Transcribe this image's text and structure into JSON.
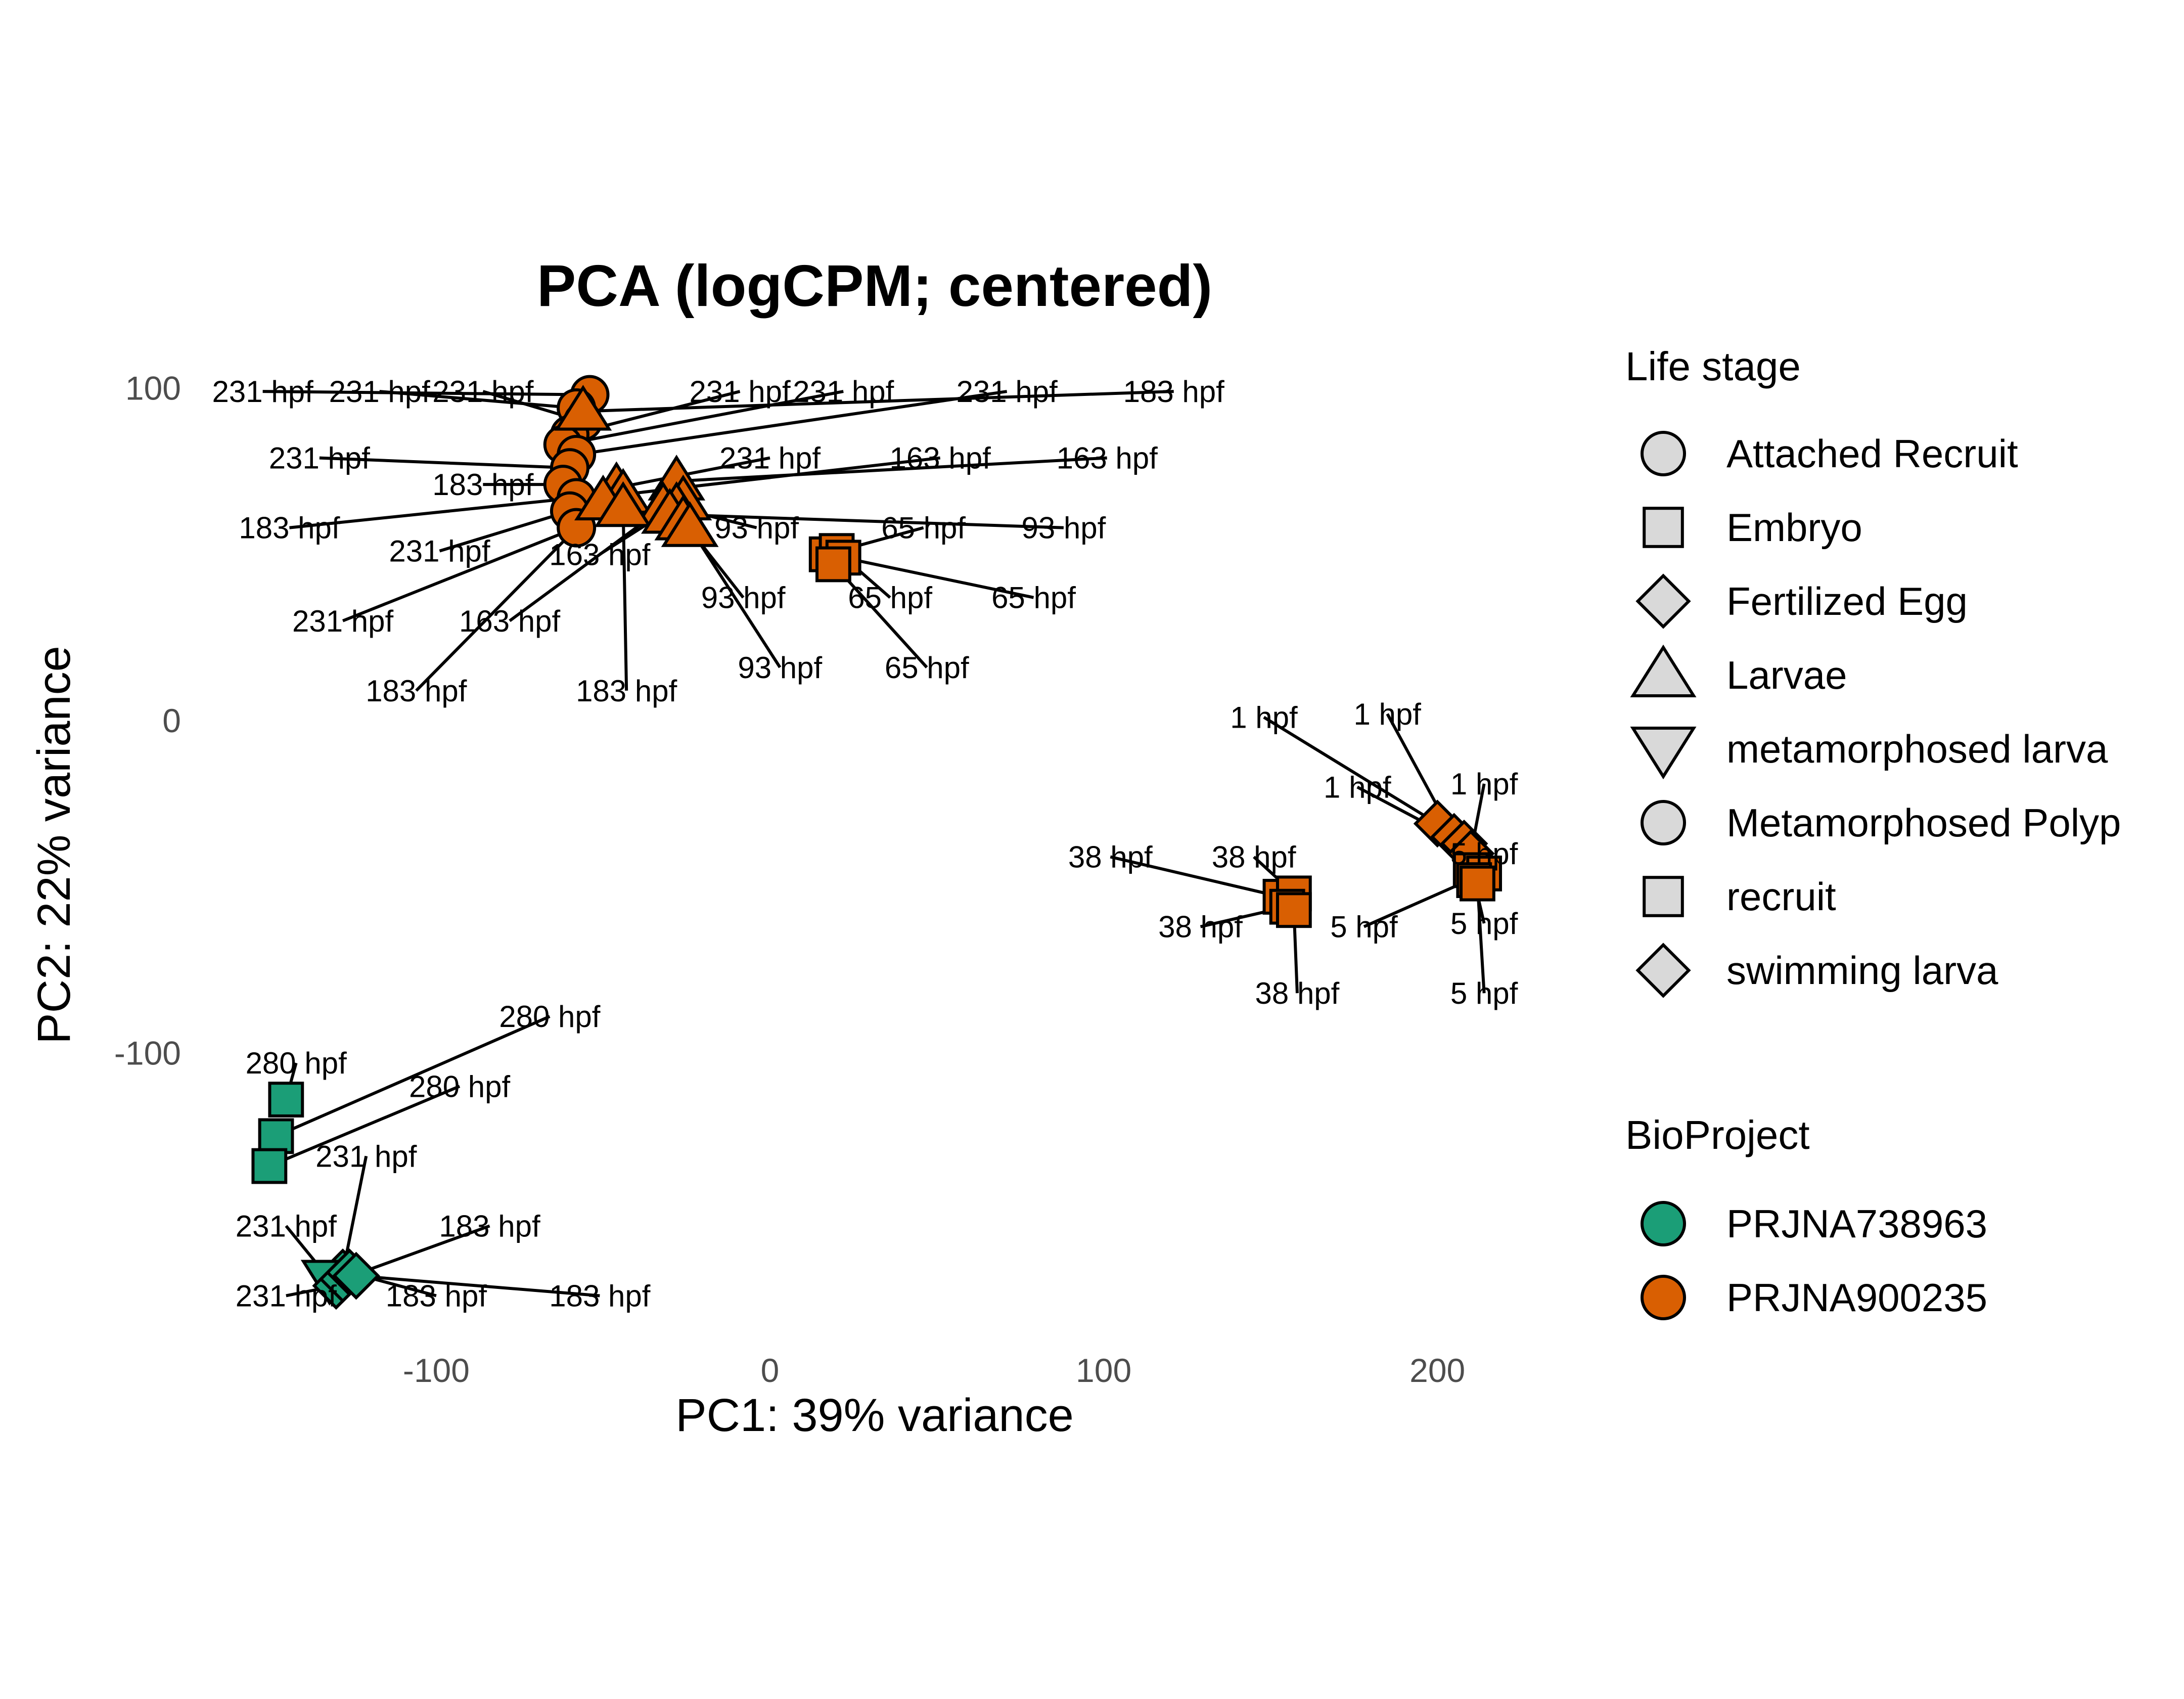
{
  "chart_data": {
    "type": "scatter",
    "title": "PCA (logCPM; centered)",
    "xlabel": "PC1: 39% variance",
    "ylabel": "PC2: 22% variance",
    "xlim": [
      -170,
      225
    ],
    "ylim": [
      -180,
      110
    ],
    "xticks": [
      -100,
      0,
      100,
      200
    ],
    "yticks": [
      -100,
      0,
      100
    ],
    "grid": false,
    "legend_placement": "right",
    "shape_legend": {
      "title": "Life stage",
      "items": [
        {
          "label": "Attached Recruit",
          "shape": "circle"
        },
        {
          "label": "Embryo",
          "shape": "square"
        },
        {
          "label": "Fertilized Egg",
          "shape": "diamond"
        },
        {
          "label": "Larvae",
          "shape": "triangle-up"
        },
        {
          "label": "metamorphosed larva",
          "shape": "triangle-down"
        },
        {
          "label": "Metamorphosed Polyp",
          "shape": "circle"
        },
        {
          "label": "recruit",
          "shape": "square"
        },
        {
          "label": "swimming larva",
          "shape": "diamond"
        }
      ]
    },
    "color_legend": {
      "title": "BioProject",
      "items": [
        {
          "label": "PRJNA738963",
          "color": "#1b9e77"
        },
        {
          "label": "PRJNA900235",
          "color": "#d95f02"
        }
      ]
    },
    "points": [
      {
        "x": -54,
        "y": 98,
        "shape": "circle",
        "project": "PRJNA900235",
        "label": "231 hpf",
        "lx": -152,
        "ly": 99
      },
      {
        "x": -58,
        "y": 94,
        "shape": "circle",
        "project": "PRJNA900235",
        "label": "231 hpf",
        "lx": -117,
        "ly": 99
      },
      {
        "x": -56,
        "y": 90,
        "shape": "circle",
        "project": "PRJNA900235",
        "label": "231 hpf",
        "lx": -86,
        "ly": 99
      },
      {
        "x": -60,
        "y": 86,
        "shape": "circle",
        "project": "PRJNA900235",
        "label": "231 hpf",
        "lx": -9,
        "ly": 99
      },
      {
        "x": -62,
        "y": 83,
        "shape": "circle",
        "project": "PRJNA900235",
        "label": "231 hpf",
        "lx": 22,
        "ly": 99
      },
      {
        "x": -58,
        "y": 80,
        "shape": "circle",
        "project": "PRJNA900235",
        "label": "231 hpf",
        "lx": 71,
        "ly": 99
      },
      {
        "x": -60,
        "y": 76,
        "shape": "circle",
        "project": "PRJNA900235",
        "label": "231 hpf",
        "lx": -135,
        "ly": 79
      },
      {
        "x": -62,
        "y": 71,
        "shape": "circle",
        "project": "PRJNA900235",
        "label": "183 hpf",
        "lx": -86,
        "ly": 71
      },
      {
        "x": -58,
        "y": 67,
        "shape": "circle",
        "project": "PRJNA900235",
        "label": "183 hpf",
        "lx": -144,
        "ly": 58
      },
      {
        "x": -60,
        "y": 63,
        "shape": "circle",
        "project": "PRJNA900235",
        "label": "231 hpf",
        "lx": -99,
        "ly": 51
      },
      {
        "x": -58,
        "y": 58,
        "shape": "circle",
        "project": "PRJNA900235",
        "label": "231 hpf",
        "lx": -128,
        "ly": 30
      },
      {
        "x": -56,
        "y": 93,
        "shape": "triangle-up",
        "project": "PRJNA900235",
        "label": "183 hpf",
        "lx": 121,
        "ly": 99
      },
      {
        "x": -46,
        "y": 70,
        "shape": "triangle-up",
        "project": "PRJNA900235",
        "label": "231 hpf",
        "lx": 0,
        "ly": 79
      },
      {
        "x": -44,
        "y": 68,
        "shape": "triangle-up",
        "project": "PRJNA900235",
        "label": "163 hpf",
        "lx": 51,
        "ly": 79
      },
      {
        "x": -28,
        "y": 72,
        "shape": "triangle-up",
        "project": "PRJNA900235",
        "label": "163 hpf",
        "lx": 101,
        "ly": 79
      },
      {
        "x": -26,
        "y": 66,
        "shape": "triangle-up",
        "project": "PRJNA900235",
        "label": "163 hpf",
        "lx": -51,
        "ly": 50
      },
      {
        "x": -32,
        "y": 64,
        "shape": "triangle-up",
        "project": "PRJNA900235",
        "label": "163 hpf",
        "lx": -78,
        "ly": 30
      },
      {
        "x": -50,
        "y": 66,
        "shape": "triangle-up",
        "project": "PRJNA900235",
        "label": "183 hpf",
        "lx": -106,
        "ly": 9
      },
      {
        "x": -44,
        "y": 64,
        "shape": "triangle-up",
        "project": "PRJNA900235",
        "label": "183 hpf",
        "lx": -43,
        "ly": 9
      },
      {
        "x": -28,
        "y": 64,
        "shape": "triangle-up",
        "project": "PRJNA900235",
        "label": "93 hpf",
        "lx": -4,
        "ly": 58
      },
      {
        "x": -30,
        "y": 62,
        "shape": "triangle-up",
        "project": "PRJNA900235",
        "label": "93 hpf",
        "lx": 88,
        "ly": 58
      },
      {
        "x": -26,
        "y": 60,
        "shape": "triangle-up",
        "project": "PRJNA900235",
        "label": "93 hpf",
        "lx": -8,
        "ly": 37
      },
      {
        "x": -24,
        "y": 58,
        "shape": "triangle-up",
        "project": "PRJNA900235",
        "label": "93 hpf",
        "lx": 3,
        "ly": 16
      },
      {
        "x": 17,
        "y": 50,
        "shape": "square",
        "project": "PRJNA900235",
        "label": "65 hpf",
        "lx": 46,
        "ly": 58
      },
      {
        "x": 20,
        "y": 51,
        "shape": "square",
        "project": "PRJNA900235",
        "label": "65 hpf",
        "lx": 36,
        "ly": 37
      },
      {
        "x": 22,
        "y": 49,
        "shape": "square",
        "project": "PRJNA900235",
        "label": "65 hpf",
        "lx": 79,
        "ly": 37
      },
      {
        "x": 19,
        "y": 47,
        "shape": "square",
        "project": "PRJNA900235",
        "label": "65 hpf",
        "lx": 47,
        "ly": 16
      },
      {
        "x": 200,
        "y": -31,
        "shape": "diamond",
        "project": "PRJNA900235",
        "label": "1 hpf",
        "lx": 148,
        "ly": 1
      },
      {
        "x": 205,
        "y": -35,
        "shape": "diamond",
        "project": "PRJNA900235",
        "label": "1 hpf",
        "lx": 185,
        "ly": 2
      },
      {
        "x": 208,
        "y": -37,
        "shape": "diamond",
        "project": "PRJNA900235",
        "label": "1 hpf",
        "lx": 176,
        "ly": -20
      },
      {
        "x": 210,
        "y": -40,
        "shape": "diamond",
        "project": "PRJNA900235",
        "label": "1 hpf",
        "lx": 214,
        "ly": -19
      },
      {
        "x": 210,
        "y": -45,
        "shape": "square",
        "project": "PRJNA900235",
        "label": "5 hpf",
        "lx": 214,
        "ly": -40
      },
      {
        "x": 214,
        "y": -46,
        "shape": "square",
        "project": "PRJNA900235",
        "label": "5 hpf",
        "lx": 178,
        "ly": -62
      },
      {
        "x": 211,
        "y": -48,
        "shape": "square",
        "project": "PRJNA900235",
        "label": "5 hpf",
        "lx": 214,
        "ly": -61
      },
      {
        "x": 212,
        "y": -49,
        "shape": "square",
        "project": "PRJNA900235",
        "label": "5 hpf",
        "lx": 214,
        "ly": -82
      },
      {
        "x": 153,
        "y": -53,
        "shape": "square",
        "project": "PRJNA900235",
        "label": "38 hpf",
        "lx": 102,
        "ly": -41
      },
      {
        "x": 157,
        "y": -52,
        "shape": "square",
        "project": "PRJNA900235",
        "label": "38 hpf",
        "lx": 145,
        "ly": -41
      },
      {
        "x": 155,
        "y": -56,
        "shape": "square",
        "project": "PRJNA900235",
        "label": "38 hpf",
        "lx": 129,
        "ly": -62
      },
      {
        "x": 157,
        "y": -57,
        "shape": "square",
        "project": "PRJNA900235",
        "label": "38 hpf",
        "lx": 158,
        "ly": -82
      },
      {
        "x": -145,
        "y": -114,
        "shape": "square",
        "project": "PRJNA738963",
        "label": "280 hpf",
        "lx": -142,
        "ly": -103
      },
      {
        "x": -148,
        "y": -125,
        "shape": "square",
        "project": "PRJNA738963",
        "label": "280 hpf",
        "lx": -66,
        "ly": -89
      },
      {
        "x": -150,
        "y": -134,
        "shape": "square",
        "project": "PRJNA738963",
        "label": "280 hpf",
        "lx": -93,
        "ly": -110
      },
      {
        "x": -128,
        "y": -166,
        "shape": "diamond",
        "project": "PRJNA738963",
        "label": "231 hpf",
        "lx": -121,
        "ly": -131
      },
      {
        "x": -132,
        "y": -168,
        "shape": "triangle-down",
        "project": "PRJNA738963",
        "label": "231 hpf",
        "lx": -145,
        "ly": -152
      },
      {
        "x": -130,
        "y": -170,
        "shape": "diamond",
        "project": "PRJNA738963",
        "label": "231 hpf",
        "lx": -145,
        "ly": -173
      },
      {
        "x": -128,
        "y": -168,
        "shape": "diamond",
        "project": "PRJNA738963",
        "label": "183 hpf",
        "lx": -84,
        "ly": -152
      },
      {
        "x": -126,
        "y": -166,
        "shape": "diamond",
        "project": "PRJNA738963",
        "label": "183 hpf",
        "lx": -100,
        "ly": -173
      },
      {
        "x": -124,
        "y": -167,
        "shape": "diamond",
        "project": "PRJNA738963",
        "label": "183 hpf",
        "lx": -51,
        "ly": -173
      }
    ]
  }
}
